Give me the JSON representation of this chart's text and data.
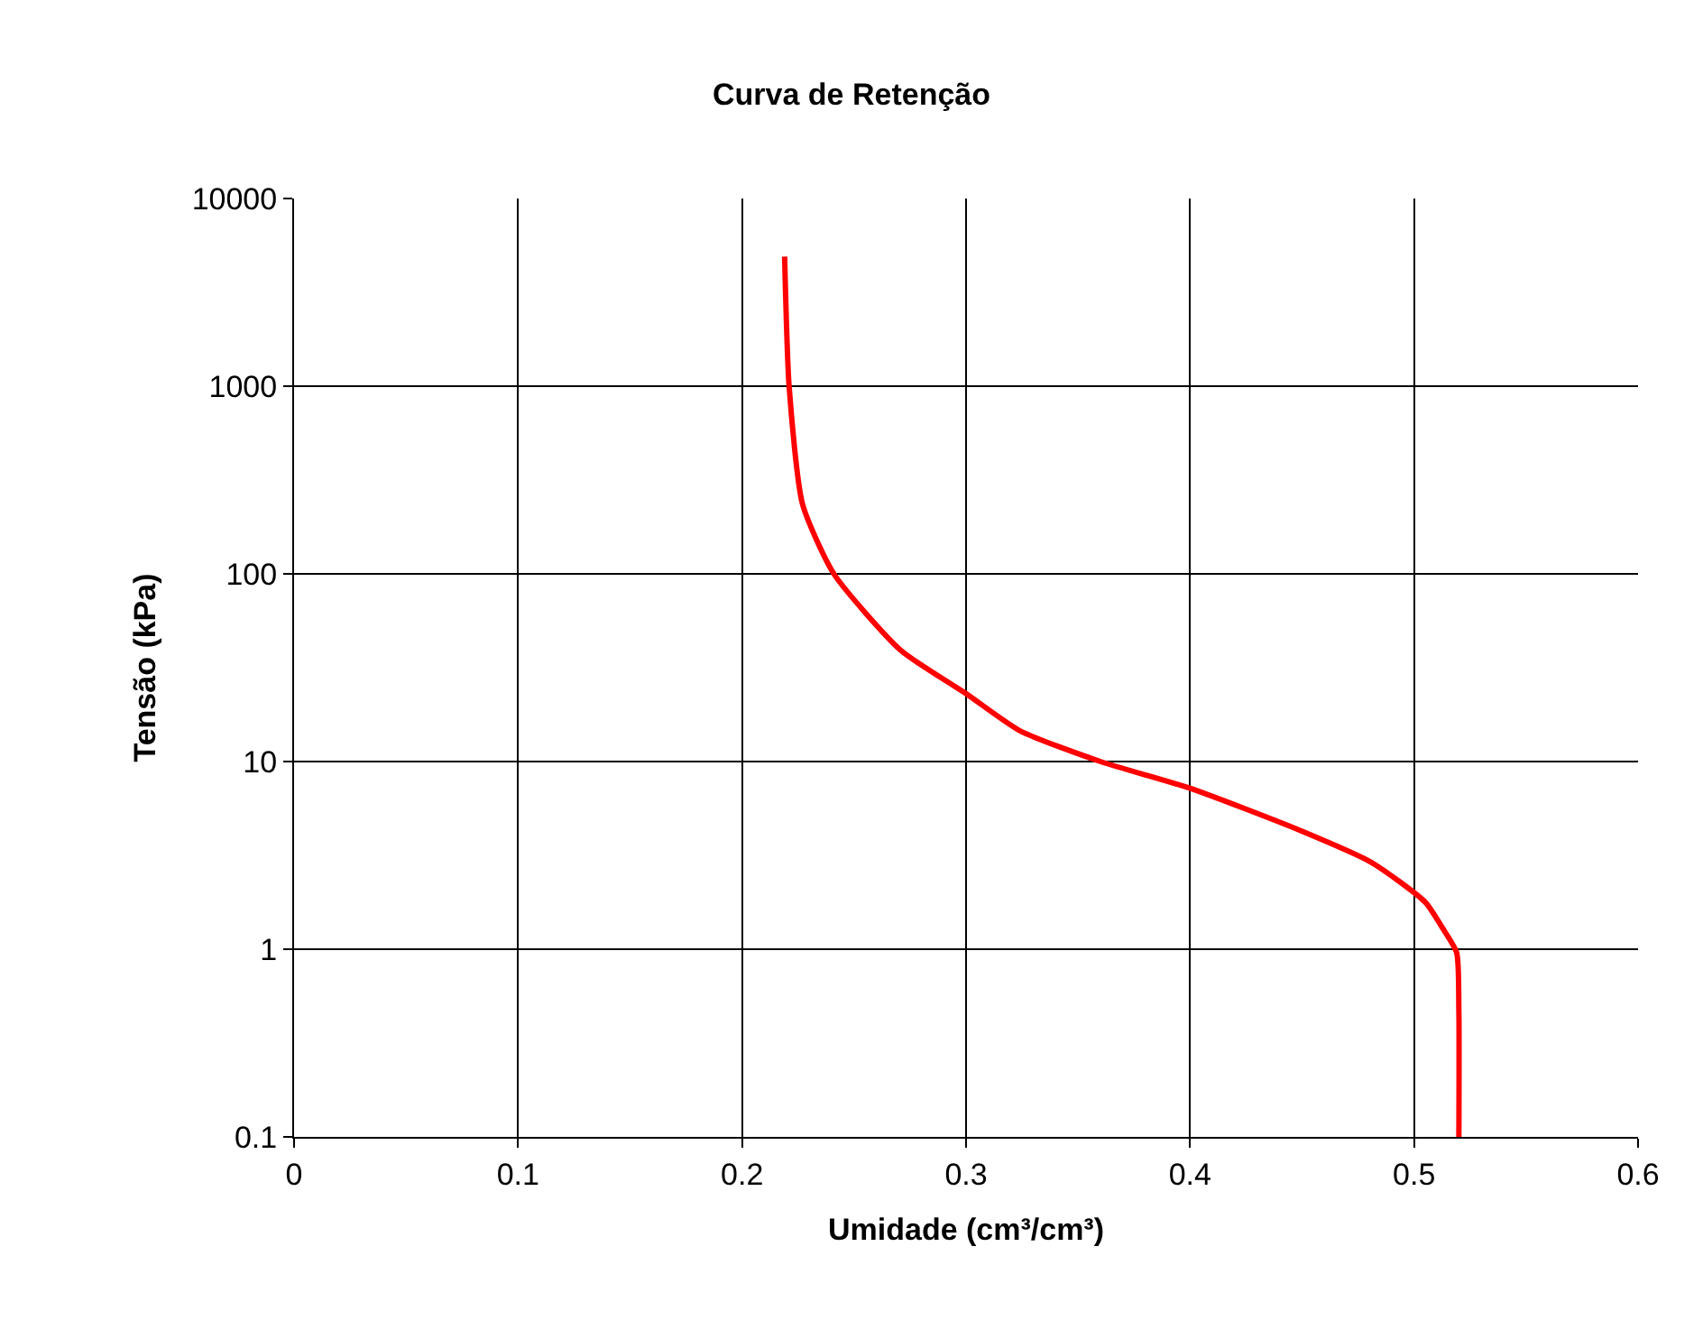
{
  "chart_data": {
    "type": "line",
    "title": "Curva de Retenção",
    "xlabel": "Umidade (cm³/cm³)",
    "ylabel": "Tensão (kPa)",
    "x": [
      0.219,
      0.221,
      0.227,
      0.241,
      0.271,
      0.3,
      0.324,
      0.36,
      0.4,
      0.449,
      0.481,
      0.505,
      0.513,
      0.519,
      0.52,
      0.52
    ],
    "series": [
      {
        "color": "#ff0000",
        "values": [
          4900,
          1000,
          235,
          100,
          39,
          23,
          14.6,
          10,
          7.2,
          4.3,
          2.9,
          1.78,
          1.28,
          0.96,
          0.47,
          0.1
        ]
      }
    ],
    "xlim": [
      0,
      0.6
    ],
    "xticks": [
      0,
      0.1,
      0.2,
      0.3,
      0.4,
      0.5,
      0.6
    ],
    "ylim": [
      0.1,
      10000
    ],
    "yticks": [
      0.1,
      1,
      10,
      100,
      1000,
      10000
    ],
    "log": "y",
    "grid": true,
    "marker": "none",
    "line_style": "solid"
  }
}
